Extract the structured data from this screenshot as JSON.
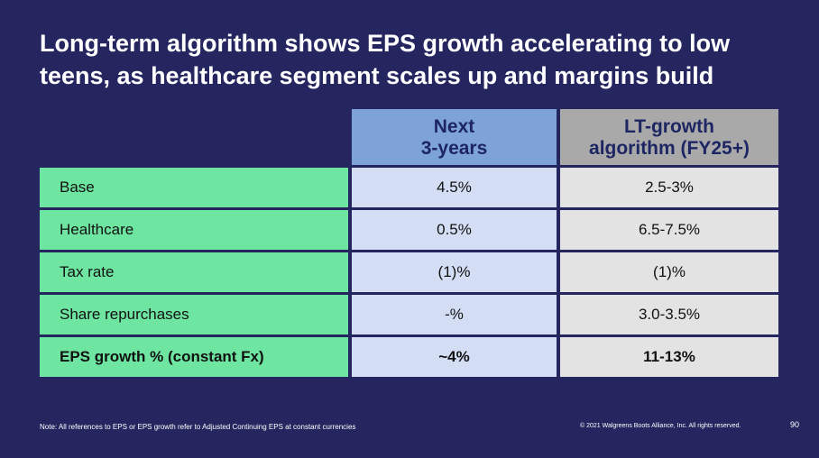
{
  "title": "Long-term algorithm shows EPS growth accelerating to low teens, as healthcare segment scales up and margins build",
  "table": {
    "headers": {
      "next_line1": "Next",
      "next_line2": "3-years",
      "lt_line1": "LT-growth",
      "lt_line2": "algorithm (FY25+)"
    },
    "rows": [
      {
        "label": "Base",
        "next": "4.5%",
        "lt": "2.5-3%"
      },
      {
        "label": "Healthcare",
        "next": "0.5%",
        "lt": "6.5-7.5%"
      },
      {
        "label": "Tax rate",
        "next": "(1)%",
        "lt": "(1)%"
      },
      {
        "label": "Share repurchases",
        "next": "-%",
        "lt": "3.0-3.5%"
      },
      {
        "label": "EPS growth % (constant Fx)",
        "next": "~4%",
        "lt": "11-13%"
      }
    ]
  },
  "footnote": "Note: All references to EPS or EPS growth  refer to Adjusted Continuing EPS at constant currencies",
  "copyright": "© 2021 Walgreens Boots Alliance, Inc. All rights reserved.",
  "page_number": "90"
}
